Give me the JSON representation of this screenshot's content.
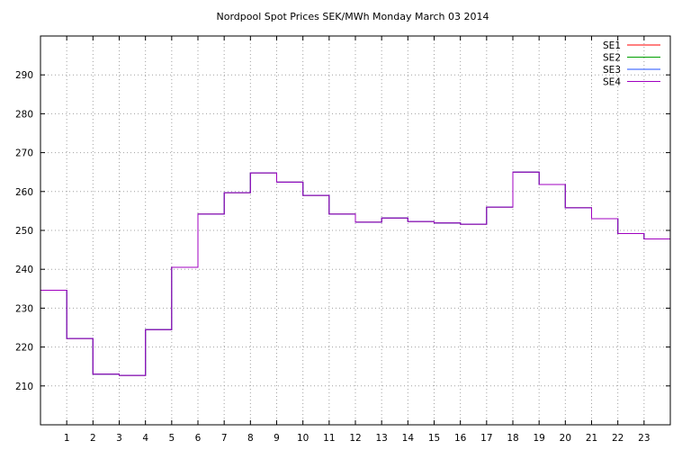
{
  "chart_data": {
    "type": "line",
    "step": true,
    "title": "Nordpool Spot Prices SEK/MWh Monday March 03 2014",
    "xlabel": "",
    "ylabel": "",
    "xlim": [
      0,
      24
    ],
    "ylim": [
      200,
      300
    ],
    "x_ticks": [
      1,
      2,
      3,
      4,
      5,
      6,
      7,
      8,
      9,
      10,
      11,
      12,
      13,
      14,
      15,
      16,
      17,
      18,
      19,
      20,
      21,
      22,
      23
    ],
    "y_ticks": [
      210,
      220,
      230,
      240,
      250,
      260,
      270,
      280,
      290
    ],
    "grid": true,
    "legend_position": "top-right",
    "x": [
      0,
      1,
      2,
      3,
      4,
      5,
      6,
      7,
      8,
      9,
      10,
      11,
      12,
      13,
      14,
      15,
      16,
      17,
      18,
      19,
      20,
      21,
      22,
      23
    ],
    "series": [
      {
        "name": "SE1",
        "color": "#ff0000",
        "values": [
          234.6,
          222.2,
          213.0,
          212.7,
          224.5,
          240.5,
          254.2,
          259.7,
          264.8,
          262.4,
          259.0,
          254.2,
          252.1,
          253.2,
          252.3,
          251.9,
          251.6,
          256.0,
          265.0,
          261.8,
          255.8,
          253.0,
          249.2,
          247.8
        ]
      },
      {
        "name": "SE2",
        "color": "#00a000",
        "values": [
          234.6,
          222.2,
          213.0,
          212.7,
          224.5,
          240.5,
          254.2,
          259.7,
          264.8,
          262.4,
          259.0,
          254.2,
          252.1,
          253.2,
          252.3,
          251.9,
          251.6,
          256.0,
          265.0,
          261.8,
          255.8,
          253.0,
          249.2,
          247.8
        ]
      },
      {
        "name": "SE3",
        "color": "#2050ff",
        "values": [
          234.6,
          222.2,
          213.0,
          212.7,
          224.5,
          240.5,
          254.2,
          259.7,
          264.8,
          262.4,
          259.0,
          254.2,
          252.1,
          253.2,
          252.3,
          251.9,
          251.6,
          256.0,
          265.0,
          261.8,
          255.8,
          253.0,
          249.2,
          247.8
        ]
      },
      {
        "name": "SE4",
        "color": "#a000c0",
        "values": [
          234.6,
          222.2,
          213.0,
          212.7,
          224.5,
          240.5,
          254.2,
          259.7,
          264.8,
          262.4,
          259.0,
          254.2,
          252.1,
          253.2,
          252.3,
          251.9,
          251.6,
          256.0,
          265.0,
          261.8,
          255.8,
          253.0,
          249.2,
          247.8
        ]
      }
    ]
  }
}
